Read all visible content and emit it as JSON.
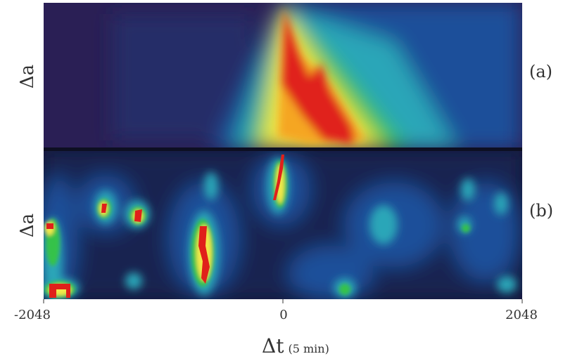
{
  "chart_data": [
    {
      "type": "heatmap",
      "panel": "(a)",
      "ylabel": "Δa",
      "xlim": [
        -2048,
        2048
      ],
      "description_of_intensity": "colour scale purple→blue→cyan→green→yellow→red",
      "hotspots": [
        {
          "x": 0,
          "intensity": "red"
        },
        {
          "x": 300,
          "intensity": "red"
        },
        {
          "x": 500,
          "intensity": "red"
        }
      ]
    },
    {
      "type": "heatmap",
      "panel": "(b)",
      "ylabel": "Δa",
      "xlim": [
        -2048,
        2048
      ],
      "hotspots": [
        {
          "x": 0,
          "intensity": "red"
        },
        {
          "x": -700,
          "intensity": "red"
        },
        {
          "x": -1550,
          "intensity": "red"
        },
        {
          "x": -1300,
          "intensity": "red"
        },
        {
          "x": -1950,
          "intensity": "red"
        }
      ]
    }
  ],
  "axis": {
    "x_ticks": [
      "-2048",
      "0",
      "2048"
    ],
    "x_tick_values": [
      -2048,
      0,
      2048
    ],
    "xlabel": "Δt",
    "xunit": "(5 min)"
  },
  "panels": {
    "a_label": "(a)",
    "b_label": "(b)",
    "a_ylabel": "Δa",
    "b_ylabel": "Δa"
  },
  "colors": {
    "background": "#2a1f55",
    "blue": "#1d4f9a",
    "cyan": "#2aa6b8",
    "green": "#36c24a",
    "yellow": "#f2e84a",
    "orange": "#f5a623",
    "red": "#e0201a"
  }
}
